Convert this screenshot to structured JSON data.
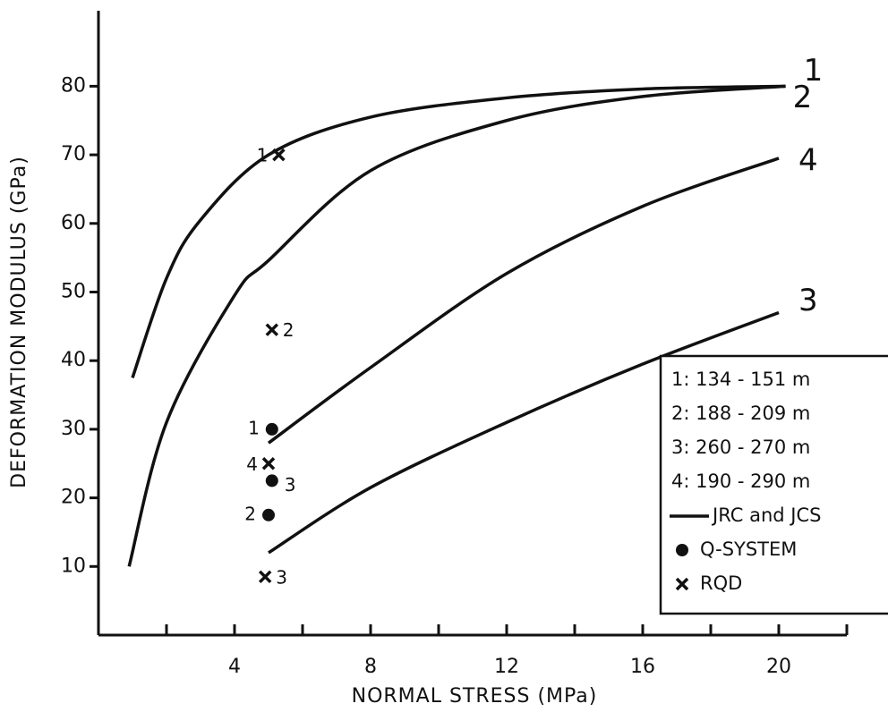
{
  "chart_data": {
    "type": "line",
    "x_label": "NORMAL STRESS (MPa)",
    "y_label": "DEFORMATION MODULUS (GPa)",
    "xlim": [
      0,
      22
    ],
    "ylim": [
      0,
      91
    ],
    "xticks": [
      4,
      8,
      12,
      16,
      20
    ],
    "xminor_ticks": [
      2,
      6,
      10,
      14,
      18,
      22
    ],
    "yticks": [
      10,
      20,
      30,
      40,
      50,
      60,
      70,
      80
    ],
    "color": "#111111",
    "curves": [
      {
        "label": "1",
        "x": [
          1,
          2,
          3,
          5,
          8,
          12,
          16,
          20.2
        ],
        "values": [
          37.5,
          52,
          60.5,
          70,
          75.5,
          78.3,
          79.6,
          80
        ]
      },
      {
        "label": "2",
        "x": [
          0.9,
          2,
          4,
          5,
          8,
          12,
          16,
          20.2
        ],
        "values": [
          10,
          31,
          49.5,
          54.6,
          67.7,
          75,
          78.5,
          80
        ]
      },
      {
        "label": "4",
        "x": [
          5,
          8,
          12,
          16,
          20
        ],
        "values": [
          28,
          39,
          52.7,
          62.5,
          69.5
        ]
      },
      {
        "label": "3",
        "x": [
          5,
          8,
          12,
          16,
          20
        ],
        "values": [
          12,
          21.5,
          31,
          39.5,
          47
        ]
      }
    ],
    "q_system": [
      {
        "label": "1",
        "x": 5.1,
        "value": 30
      },
      {
        "label": "3",
        "x": 5.1,
        "value": 22.5
      },
      {
        "label": "2",
        "x": 5.0,
        "value": 17.5
      }
    ],
    "rqd": [
      {
        "label": "1",
        "x": 5.3,
        "value": 70
      },
      {
        "label": "2",
        "x": 5.1,
        "value": 44.5
      },
      {
        "label": "4",
        "x": 5.0,
        "value": 25
      },
      {
        "label": "3",
        "x": 4.9,
        "value": 8.5
      }
    ],
    "legend": {
      "ranges": [
        "1: 134 - 151 m",
        "2: 188 - 209 m",
        "3: 260 - 270 m",
        "4: 190 - 290 m"
      ],
      "line": "JRC and JCS",
      "dot": "Q-SYSTEM",
      "cross": "RQD"
    }
  }
}
